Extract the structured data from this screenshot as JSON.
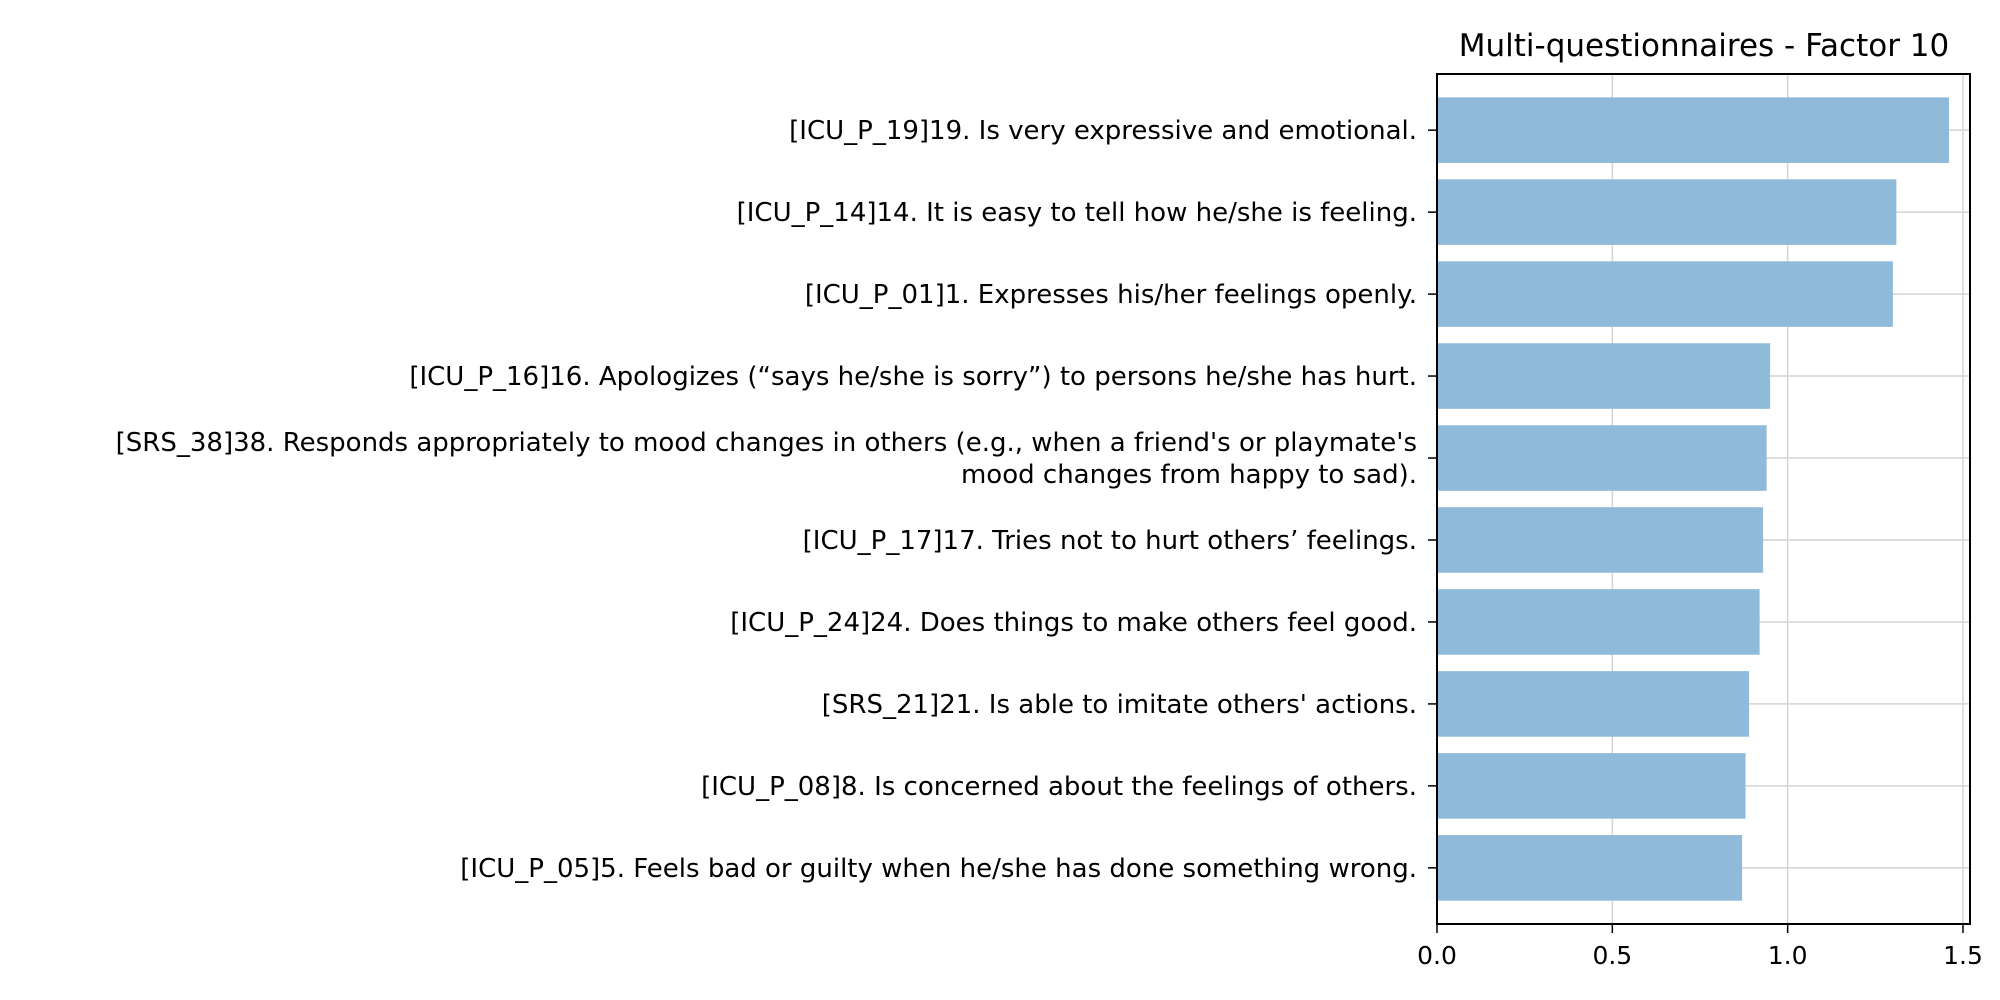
{
  "chart_data": {
    "type": "bar",
    "orientation": "horizontal",
    "title": "Multi-questionnaires - Factor 10",
    "xlabel": "",
    "ylabel": "",
    "xlim": [
      0.0,
      1.52
    ],
    "xticks": [
      "0.0",
      "0.5",
      "1.0",
      "1.5"
    ],
    "grid": true,
    "bar_color": "#8fbad9",
    "categories": [
      [
        "[ICU_P_19]19. Is very expressive and emotional."
      ],
      [
        "[ICU_P_14]14. It is easy to tell how he/she is feeling."
      ],
      [
        "[ICU_P_01]1. Expresses his/her feelings openly."
      ],
      [
        "[ICU_P_16]16. Apologizes (“says he/she is sorry”) to persons he/she has hurt."
      ],
      [
        "[SRS_38]38. Responds appropriately to mood changes in others (e.g., when a friend's or playmate's",
        "mood changes from happy to sad)."
      ],
      [
        "[ICU_P_17]17. Tries not to hurt others’ feelings."
      ],
      [
        "[ICU_P_24]24. Does things to make others feel good."
      ],
      [
        "[SRS_21]21. Is able to imitate others' actions."
      ],
      [
        "[ICU_P_08]8. Is concerned about the feelings of others."
      ],
      [
        "[ICU_P_05]5. Feels bad or guilty when he/she has done something wrong."
      ]
    ],
    "values": [
      1.46,
      1.31,
      1.3,
      0.95,
      0.94,
      0.93,
      0.92,
      0.89,
      0.88,
      0.87
    ]
  }
}
